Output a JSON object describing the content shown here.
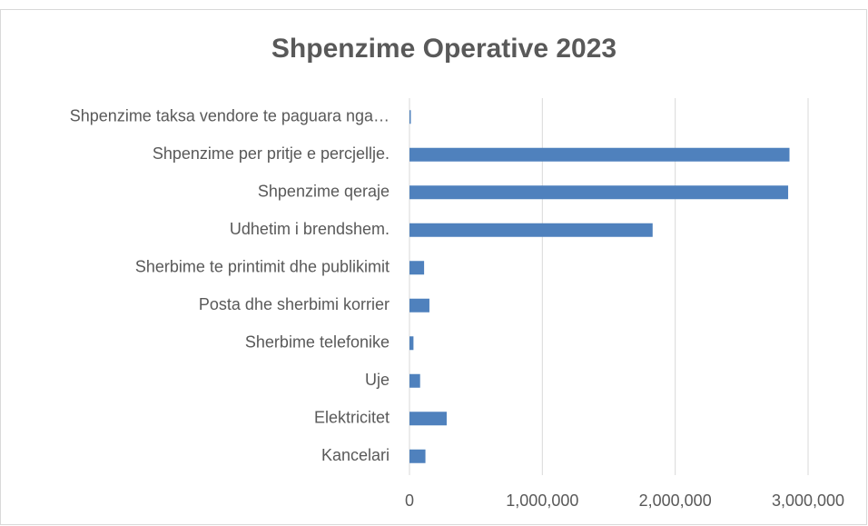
{
  "chart_data": {
    "type": "hbar",
    "title": "Shpenzime Operative 2023",
    "categories": [
      "Shpenzime taksa vendore te paguara nga…",
      "Shpenzime per pritje e percjellje.",
      "Shpenzime qeraje",
      "Udhetim i brendshem.",
      "Sherbime te printimit dhe publikimit",
      "Posta dhe sherbimi korrier",
      "Sherbime telefonike",
      "Uje",
      "Elektricitet",
      "Kancelari"
    ],
    "values": [
      10000,
      2860000,
      2850000,
      1830000,
      110000,
      150000,
      30000,
      80000,
      280000,
      120000
    ],
    "color": "#4f81bd",
    "xlim": [
      0,
      3000000
    ],
    "xticks": [
      0,
      {
        "value": 1000000,
        "label": "1,000,000"
      },
      {
        "value": 2000000,
        "label": "2,000,000"
      },
      {
        "value": 3000000,
        "label": "3,000,000"
      }
    ],
    "grid": true
  }
}
